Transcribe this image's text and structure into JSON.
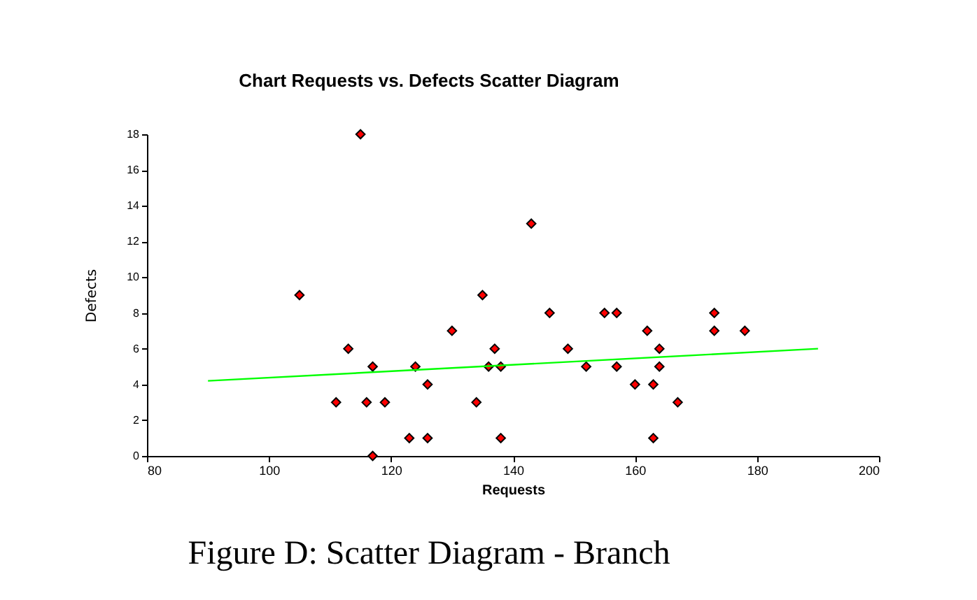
{
  "chart_data": {
    "type": "scatter",
    "title": "Chart Requests vs. Defects Scatter Diagram",
    "xlabel": "Requests",
    "ylabel": "Defects",
    "x": [
      105,
      111,
      113,
      115,
      116,
      117,
      117,
      119,
      123,
      124,
      126,
      126,
      130,
      134,
      135,
      136,
      137,
      138,
      138,
      143,
      146,
      149,
      152,
      155,
      157,
      157,
      160,
      162,
      163,
      163,
      164,
      164,
      167,
      173,
      173,
      178
    ],
    "series": [
      {
        "color": "#ff0000",
        "marker": "diamond",
        "values": [
          9,
          3,
          6,
          18,
          3,
          5,
          0,
          3,
          1,
          5,
          4,
          1,
          7,
          3,
          9,
          5,
          6,
          5,
          1,
          13,
          8,
          6,
          5,
          8,
          8,
          5,
          4,
          7,
          4,
          1,
          6,
          5,
          3,
          8,
          7,
          7
        ]
      },
      {
        "type": "line",
        "color": "#00ff00",
        "x": [
          90,
          190
        ],
        "values": [
          4.2,
          6.0
        ],
        "marker": "none",
        "line_style": "solid"
      }
    ],
    "xlim": [
      80,
      200
    ],
    "xticks": [
      80,
      100,
      120,
      140,
      160,
      180,
      200
    ],
    "ylim": [
      0,
      18
    ],
    "yticks": [
      0,
      2,
      4,
      6,
      8,
      10,
      12,
      14,
      16,
      18
    ],
    "grid": false,
    "annotations": [
      "Figure D: Scatter Diagram - Branch"
    ]
  }
}
